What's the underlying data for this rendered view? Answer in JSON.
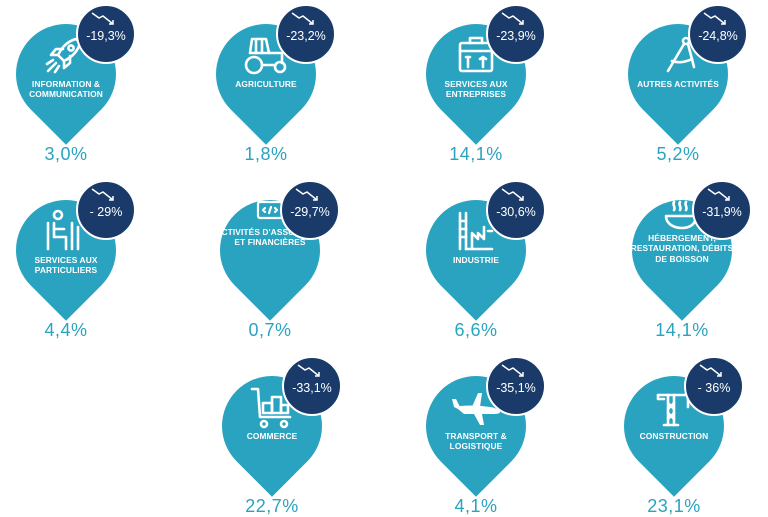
{
  "sectors": [
    {
      "label": "Information & communication",
      "change": "-19,3%",
      "share": "3,0%",
      "icon": "rocket-icon"
    },
    {
      "label": "Agriculture",
      "change": "-23,2%",
      "share": "1,8%",
      "icon": "tractor-icon"
    },
    {
      "label": "Services aux entreprises",
      "change": "-23,9%",
      "share": "14,1%",
      "icon": "toolbox-icon"
    },
    {
      "label": "Autres activités",
      "change": "-24,8%",
      "share": "5,2%",
      "icon": "compass-icon"
    },
    {
      "label": "Services aux particuliers",
      "change": "- 29%",
      "share": "4,4%",
      "icon": "person-seated-icon"
    },
    {
      "label": "Activités d'assurance et financières",
      "change": "-29,7%",
      "share": "0,7%",
      "icon": "computer-user-icon"
    },
    {
      "label": "Industrie",
      "change": "-30,6%",
      "share": "6,6%",
      "icon": "factory-icon"
    },
    {
      "label": "Hébergement, restauration, débits de boisson",
      "change": "-31,9%",
      "share": "14,1%",
      "icon": "frying-pan-icon"
    },
    {
      "label": "Commerce",
      "change": "-33,1%",
      "share": "22,7%",
      "icon": "shopping-cart-icon"
    },
    {
      "label": "Transport & logistique",
      "change": "-35,1%",
      "share": "4,1%",
      "icon": "airplane-icon"
    },
    {
      "label": "Construction",
      "change": "- 36%",
      "share": "23,1%",
      "icon": "crane-icon"
    }
  ],
  "colors": {
    "pin": "#2aa3c0",
    "badge": "#1a3b6a",
    "share_text": "#2aa3c0"
  }
}
